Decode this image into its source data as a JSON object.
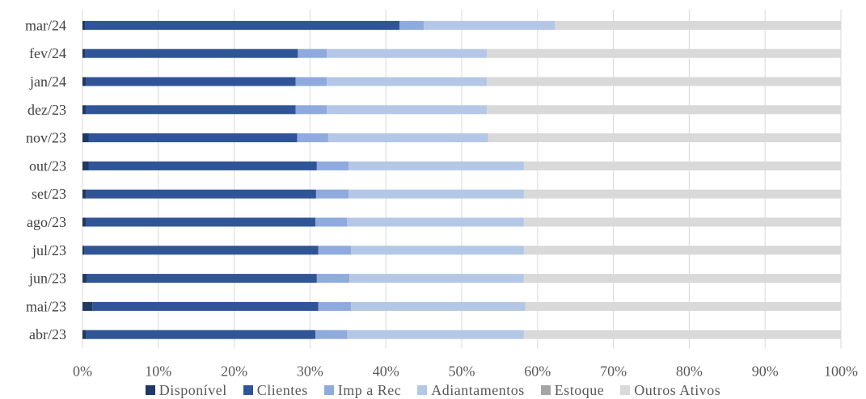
{
  "chart_data": {
    "type": "bar",
    "orientation": "horizontal",
    "stacked": "percent",
    "categories": [
      "mar/24",
      "fev/24",
      "jan/24",
      "dez/23",
      "nov/23",
      "out/23",
      "set/23",
      "ago/23",
      "jul/23",
      "jun/23",
      "mai/23",
      "abr/23"
    ],
    "series": [
      {
        "name": "Disponível",
        "color": "#1f3864",
        "values": [
          0.4,
          0.4,
          0.5,
          0.5,
          0.8,
          0.8,
          0.5,
          0.5,
          0.3,
          0.6,
          1.3,
          0.5
        ]
      },
      {
        "name": "Clientes",
        "color": "#2f5597",
        "values": [
          41.4,
          28.0,
          27.6,
          27.6,
          27.5,
          30.1,
          30.3,
          30.2,
          30.8,
          30.3,
          29.8,
          30.2
        ]
      },
      {
        "name": "Imp a Rec",
        "color": "#8faadc",
        "values": [
          3.2,
          3.8,
          4.1,
          4.1,
          4.1,
          4.2,
          4.3,
          4.2,
          4.3,
          4.3,
          4.3,
          4.2
        ]
      },
      {
        "name": "Adiantamentos",
        "color": "#b4c7e7",
        "values": [
          17.3,
          21.1,
          21.1,
          21.1,
          21.1,
          23.1,
          23.1,
          23.3,
          22.8,
          23.0,
          23.0,
          23.3
        ]
      },
      {
        "name": "Estoque",
        "color": "#a5a5a5",
        "values": [
          0,
          0,
          0,
          0,
          0,
          0,
          0,
          0,
          0,
          0,
          0,
          0
        ]
      },
      {
        "name": "Outros Ativos",
        "color": "#d9d9d9",
        "values": [
          37.7,
          46.7,
          46.7,
          46.7,
          46.5,
          41.8,
          41.8,
          41.8,
          41.8,
          41.8,
          41.6,
          41.8
        ]
      }
    ],
    "x_ticks": [
      "0%",
      "10%",
      "20%",
      "30%",
      "40%",
      "50%",
      "60%",
      "70%",
      "80%",
      "90%",
      "100%"
    ],
    "xlim": [
      0,
      100
    ],
    "grid": true,
    "legend_position": "bottom",
    "gridline_color": "#d9d9d9"
  }
}
